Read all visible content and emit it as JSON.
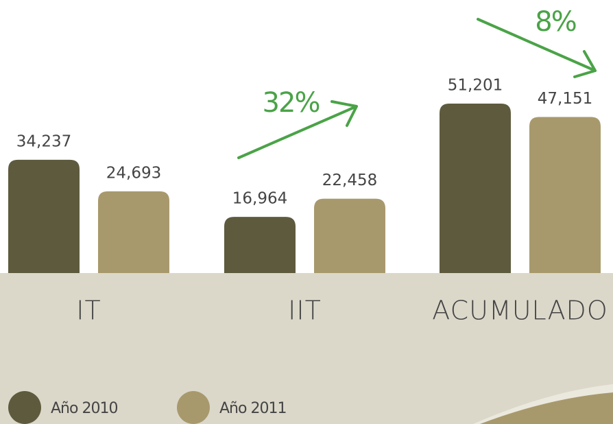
{
  "chart_data": {
    "type": "bar",
    "categories": [
      "IT",
      "IIT",
      "ACUMULADO"
    ],
    "series": [
      {
        "name": "Año 2010",
        "color": "#5e5a3e",
        "values": [
          34237,
          16964,
          51201
        ],
        "value_labels": [
          "34,237",
          "16,964",
          "51,201"
        ]
      },
      {
        "name": "Año 2011",
        "color": "#a8996d",
        "values": [
          24693,
          22458,
          47151
        ],
        "value_labels": [
          "24,693",
          "22,458",
          "47,151"
        ]
      }
    ],
    "annotations": [
      "32%",
      "8%"
    ],
    "annotation_color": "#4aa347"
  }
}
